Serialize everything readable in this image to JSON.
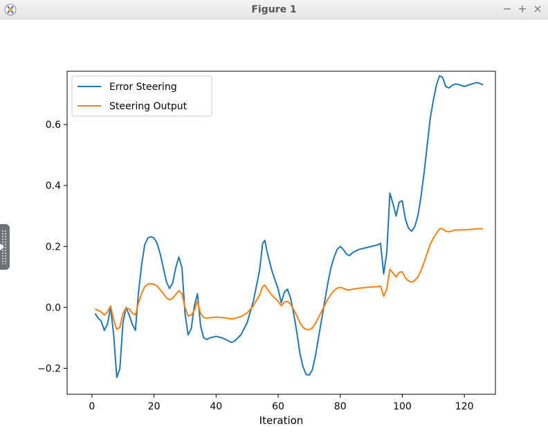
{
  "window": {
    "title": "Figure 1",
    "controls": [
      "−",
      "+",
      "×"
    ]
  },
  "chart_data": {
    "type": "line",
    "title": "",
    "xlabel": "Iteration",
    "ylabel": "",
    "xlim": [
      -8,
      130
    ],
    "ylim": [
      -0.285,
      0.775
    ],
    "xticks": [
      0,
      20,
      40,
      60,
      80,
      100,
      120
    ],
    "yticks": [
      -0.2,
      0.0,
      0.2,
      0.4,
      0.6
    ],
    "ytick_labels": [
      "−0.2",
      "0.0",
      "0.2",
      "0.4",
      "0.6"
    ],
    "grid": false,
    "legend_position": "top-left",
    "series": [
      {
        "name": "Error Steering",
        "color": "#1f77b4",
        "points": [
          [
            1,
            -0.02
          ],
          [
            2,
            -0.035
          ],
          [
            3,
            -0.045
          ],
          [
            4,
            -0.075
          ],
          [
            5,
            -0.055
          ],
          [
            6,
            0.0
          ],
          [
            7,
            -0.09
          ],
          [
            8,
            -0.23
          ],
          [
            9,
            -0.2
          ],
          [
            10,
            -0.05
          ],
          [
            11,
            -0.0
          ],
          [
            12,
            -0.025
          ],
          [
            13,
            -0.055
          ],
          [
            14,
            -0.075
          ],
          [
            15,
            0.05
          ],
          [
            16,
            0.14
          ],
          [
            17,
            0.205
          ],
          [
            18,
            0.228
          ],
          [
            19,
            0.232
          ],
          [
            20,
            0.228
          ],
          [
            21,
            0.21
          ],
          [
            22,
            0.175
          ],
          [
            23,
            0.13
          ],
          [
            24,
            0.085
          ],
          [
            25,
            0.062
          ],
          [
            26,
            0.08
          ],
          [
            27,
            0.13
          ],
          [
            28,
            0.165
          ],
          [
            29,
            0.13
          ],
          [
            30,
            -0.02
          ],
          [
            31,
            -0.09
          ],
          [
            32,
            -0.07
          ],
          [
            33,
            0.005
          ],
          [
            34,
            0.045
          ],
          [
            35,
            -0.06
          ],
          [
            36,
            -0.1
          ],
          [
            37,
            -0.105
          ],
          [
            38,
            -0.1
          ],
          [
            40,
            -0.095
          ],
          [
            42,
            -0.1
          ],
          [
            44,
            -0.11
          ],
          [
            45,
            -0.115
          ],
          [
            46,
            -0.11
          ],
          [
            48,
            -0.09
          ],
          [
            50,
            -0.05
          ],
          [
            52,
            0.02
          ],
          [
            54,
            0.12
          ],
          [
            55,
            0.21
          ],
          [
            55.7,
            0.22
          ],
          [
            56.5,
            0.18
          ],
          [
            58,
            0.12
          ],
          [
            60,
            0.06
          ],
          [
            61,
            0.015
          ],
          [
            62,
            0.05
          ],
          [
            63,
            0.06
          ],
          [
            64,
            0.03
          ],
          [
            65,
            -0.02
          ],
          [
            66,
            -0.08
          ],
          [
            67,
            -0.15
          ],
          [
            68,
            -0.195
          ],
          [
            69,
            -0.22
          ],
          [
            70,
            -0.222
          ],
          [
            71,
            -0.205
          ],
          [
            72,
            -0.16
          ],
          [
            73,
            -0.1
          ],
          [
            74,
            -0.04
          ],
          [
            75,
            0.02
          ],
          [
            76,
            0.08
          ],
          [
            77,
            0.13
          ],
          [
            78,
            0.165
          ],
          [
            79,
            0.19
          ],
          [
            80,
            0.2
          ],
          [
            81,
            0.19
          ],
          [
            82,
            0.175
          ],
          [
            83,
            0.17
          ],
          [
            84,
            0.18
          ],
          [
            86,
            0.19
          ],
          [
            88,
            0.195
          ],
          [
            90,
            0.2
          ],
          [
            92,
            0.205
          ],
          [
            93,
            0.21
          ],
          [
            94,
            0.11
          ],
          [
            95,
            0.18
          ],
          [
            96,
            0.375
          ],
          [
            97,
            0.34
          ],
          [
            98,
            0.3
          ],
          [
            99,
            0.345
          ],
          [
            100,
            0.35
          ],
          [
            101,
            0.29
          ],
          [
            102,
            0.26
          ],
          [
            103,
            0.25
          ],
          [
            104,
            0.265
          ],
          [
            105,
            0.3
          ],
          [
            106,
            0.36
          ],
          [
            107,
            0.44
          ],
          [
            108,
            0.53
          ],
          [
            109,
            0.62
          ],
          [
            110,
            0.68
          ],
          [
            111,
            0.73
          ],
          [
            112,
            0.76
          ],
          [
            113,
            0.755
          ],
          [
            114,
            0.725
          ],
          [
            115,
            0.72
          ],
          [
            116,
            0.728
          ],
          [
            117,
            0.733
          ],
          [
            118,
            0.732
          ],
          [
            120,
            0.725
          ],
          [
            122,
            0.732
          ],
          [
            124,
            0.738
          ],
          [
            125,
            0.735
          ],
          [
            126,
            0.73
          ]
        ]
      },
      {
        "name": "Steering Output",
        "color": "#ff7f0e",
        "points": [
          [
            1,
            -0.005
          ],
          [
            2,
            -0.01
          ],
          [
            3,
            -0.015
          ],
          [
            4,
            -0.025
          ],
          [
            5,
            -0.015
          ],
          [
            6,
            0.005
          ],
          [
            7,
            -0.04
          ],
          [
            8,
            -0.072
          ],
          [
            9,
            -0.065
          ],
          [
            10,
            -0.02
          ],
          [
            11,
            -0.002
          ],
          [
            12,
            -0.005
          ],
          [
            13,
            -0.018
          ],
          [
            14,
            -0.025
          ],
          [
            15,
            0.015
          ],
          [
            16,
            0.045
          ],
          [
            17,
            0.068
          ],
          [
            18,
            0.076
          ],
          [
            19,
            0.078
          ],
          [
            20,
            0.076
          ],
          [
            21,
            0.07
          ],
          [
            22,
            0.058
          ],
          [
            23,
            0.045
          ],
          [
            24,
            0.032
          ],
          [
            25,
            0.025
          ],
          [
            26,
            0.03
          ],
          [
            27,
            0.042
          ],
          [
            28,
            0.055
          ],
          [
            29,
            0.045
          ],
          [
            30,
            0.0
          ],
          [
            31,
            -0.028
          ],
          [
            32,
            -0.025
          ],
          [
            33,
            -0.01
          ],
          [
            34,
            0.02
          ],
          [
            35,
            -0.02
          ],
          [
            36,
            -0.033
          ],
          [
            37,
            -0.035
          ],
          [
            38,
            -0.034
          ],
          [
            40,
            -0.032
          ],
          [
            42,
            -0.033
          ],
          [
            44,
            -0.036
          ],
          [
            45,
            -0.038
          ],
          [
            46,
            -0.036
          ],
          [
            48,
            -0.03
          ],
          [
            50,
            -0.018
          ],
          [
            52,
            0.005
          ],
          [
            54,
            0.04
          ],
          [
            55,
            0.068
          ],
          [
            55.7,
            0.073
          ],
          [
            56.5,
            0.06
          ],
          [
            58,
            0.04
          ],
          [
            60,
            0.02
          ],
          [
            61,
            0.005
          ],
          [
            62,
            0.017
          ],
          [
            63,
            0.02
          ],
          [
            64,
            0.01
          ],
          [
            65,
            -0.007
          ],
          [
            66,
            -0.027
          ],
          [
            67,
            -0.05
          ],
          [
            68,
            -0.065
          ],
          [
            69,
            -0.072
          ],
          [
            70,
            -0.073
          ],
          [
            71,
            -0.068
          ],
          [
            72,
            -0.053
          ],
          [
            73,
            -0.033
          ],
          [
            74,
            -0.013
          ],
          [
            75,
            0.007
          ],
          [
            76,
            0.027
          ],
          [
            77,
            0.043
          ],
          [
            78,
            0.055
          ],
          [
            79,
            0.063
          ],
          [
            80,
            0.066
          ],
          [
            81,
            0.063
          ],
          [
            82,
            0.058
          ],
          [
            83,
            0.057
          ],
          [
            84,
            0.06
          ],
          [
            86,
            0.063
          ],
          [
            88,
            0.065
          ],
          [
            90,
            0.067
          ],
          [
            92,
            0.068
          ],
          [
            93,
            0.07
          ],
          [
            94,
            0.037
          ],
          [
            95,
            0.06
          ],
          [
            96,
            0.125
          ],
          [
            97,
            0.113
          ],
          [
            98,
            0.1
          ],
          [
            99,
            0.115
          ],
          [
            100,
            0.117
          ],
          [
            101,
            0.097
          ],
          [
            102,
            0.087
          ],
          [
            103,
            0.083
          ],
          [
            104,
            0.088
          ],
          [
            105,
            0.1
          ],
          [
            106,
            0.12
          ],
          [
            107,
            0.147
          ],
          [
            108,
            0.177
          ],
          [
            109,
            0.207
          ],
          [
            110,
            0.227
          ],
          [
            111,
            0.243
          ],
          [
            112,
            0.258
          ],
          [
            113,
            0.258
          ],
          [
            114,
            0.25
          ],
          [
            115,
            0.248
          ],
          [
            116,
            0.251
          ],
          [
            117,
            0.254
          ],
          [
            118,
            0.254
          ],
          [
            120,
            0.255
          ],
          [
            122,
            0.256
          ],
          [
            124,
            0.258
          ],
          [
            125,
            0.258
          ],
          [
            126,
            0.258
          ]
        ]
      }
    ]
  }
}
